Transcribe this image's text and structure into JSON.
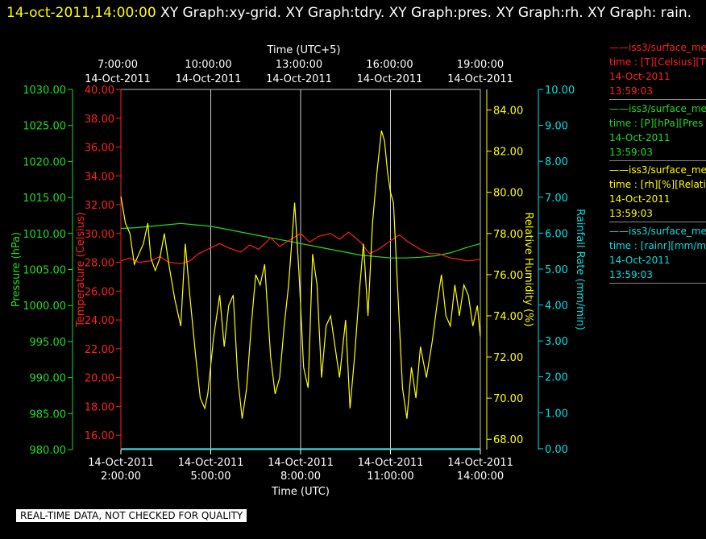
{
  "header": {
    "timestamp": "14-oct-2011,14:00:00",
    "title": "XY Graph:xy-grid.  XY Graph:tdry.  XY Graph:pres.  XY Graph:rh.  XY Graph: rain."
  },
  "footer": {
    "notice": "REAL-TIME DATA, NOT CHECKED FOR QUALITY"
  },
  "colors": {
    "temperature": "#ff2020",
    "pressure": "#20dd20",
    "humidity": "#ffff00",
    "rain": "#00e0e0",
    "grid": "#cccccc"
  },
  "legend": [
    {
      "line1": "iss3/surface_me",
      "line2": "time : [T][Celsius][T",
      "line3": "14-Oct-2011",
      "line4": "13:59:03",
      "color": "#ff2020"
    },
    {
      "line1": "iss3/surface_me",
      "line2": "time : [P][hPa][Pres",
      "line3": "14-Oct-2011",
      "line4": "13:59:03",
      "color": "#20dd20"
    },
    {
      "line1": "iss3/surface_me",
      "line2": "time : [rh][%][Relati",
      "line3": "14-Oct-2011",
      "line4": "13:59:03",
      "color": "#ffff00"
    },
    {
      "line1": "iss3/surface_me",
      "line2": "time : [rainr][mm/mi",
      "line3": "14-Oct-2011",
      "line4": "13:59:03",
      "color": "#00e0e0"
    }
  ],
  "chart_data": {
    "type": "line",
    "x_bottom": {
      "label": "Time (UTC)",
      "ticks": [
        {
          "date": "14-Oct-2011",
          "time": "2:00:00"
        },
        {
          "date": "14-Oct-2011",
          "time": "5:00:00"
        },
        {
          "date": "14-Oct-2011",
          "time": "8:00:00"
        },
        {
          "date": "14-Oct-2011",
          "time": "11:00:00"
        },
        {
          "date": "14-Oct-2011",
          "time": "14:00:00"
        }
      ]
    },
    "x_top": {
      "label": "Time (UTC+5)",
      "ticks": [
        {
          "date": "14-Oct-2011",
          "time": "7:00:00"
        },
        {
          "date": "14-Oct-2011",
          "time": "10:00:00"
        },
        {
          "date": "14-Oct-2011",
          "time": "13:00:00"
        },
        {
          "date": "14-Oct-2011",
          "time": "16:00:00"
        },
        {
          "date": "14-Oct-2011",
          "time": "19:00:00"
        }
      ]
    },
    "xlim_hours_utc": [
      2,
      14
    ],
    "grid": "vertical lines at bottom time ticks",
    "axes": {
      "pressure": {
        "label": "Pressure (hPa)",
        "lim": [
          980,
          1030
        ],
        "ticks": [
          "1030.00",
          "1025.00",
          "1020.00",
          "1015.00",
          "1010.00",
          "1005.00",
          "1000.00",
          "995.00",
          "990.00",
          "985.00",
          "980.00"
        ]
      },
      "temperature": {
        "label": "Temperature (Celsius)",
        "lim": [
          15,
          40
        ],
        "ticks": [
          "40.00",
          "38.00",
          "36.00",
          "34.00",
          "32.00",
          "30.00",
          "28.00",
          "26.00",
          "24.00",
          "22.00",
          "20.00",
          "18.00",
          "16.00"
        ]
      },
      "humidity": {
        "label": "Relative Humidity (%)",
        "lim": [
          67.5,
          85.0
        ],
        "ticks": [
          "84.00",
          "82.00",
          "80.00",
          "78.00",
          "76.00",
          "74.00",
          "72.00",
          "70.00",
          "68.00"
        ]
      },
      "rain": {
        "label": "Rainfall Rate (mm/min)",
        "lim": [
          -0.025,
          10.0
        ],
        "ticks": [
          "10.00",
          "9.00",
          "8.00",
          "7.00",
          "6.00",
          "5.00",
          "4.00",
          "3.00",
          "2.00",
          "1.00",
          "0.00"
        ]
      }
    },
    "series": [
      {
        "name": "iss3/surface_me",
        "axis": "pressure",
        "color": "#20dd20",
        "x": [
          2.0,
          2.5,
          3.0,
          3.5,
          4.0,
          4.5,
          5.0,
          5.5,
          6.0,
          6.5,
          7.0,
          7.5,
          8.0,
          8.5,
          9.0,
          9.5,
          10.0,
          10.5,
          11.0,
          11.5,
          12.0,
          12.5,
          13.0,
          13.5,
          14.0
        ],
        "values": [
          1010.7,
          1010.8,
          1011.0,
          1011.2,
          1011.4,
          1011.2,
          1011.0,
          1010.6,
          1010.2,
          1009.8,
          1009.4,
          1009.0,
          1008.6,
          1008.2,
          1007.8,
          1007.4,
          1007.0,
          1006.8,
          1006.6,
          1006.6,
          1006.7,
          1006.9,
          1007.3,
          1008.0,
          1008.6
        ]
      },
      {
        "name": "iss3/surface_me",
        "axis": "temperature",
        "color": "#ff2020",
        "x": [
          2.0,
          2.3,
          2.6,
          3.0,
          3.3,
          3.6,
          4.0,
          4.3,
          4.6,
          5.0,
          5.3,
          5.6,
          6.0,
          6.3,
          6.6,
          7.0,
          7.3,
          7.6,
          8.0,
          8.3,
          8.6,
          9.0,
          9.3,
          9.6,
          10.0,
          10.3,
          10.6,
          11.0,
          11.3,
          11.6,
          12.0,
          12.3,
          12.6,
          13.0,
          13.3,
          13.6,
          14.0
        ],
        "values": [
          28.1,
          28.3,
          28.0,
          28.1,
          28.4,
          28.0,
          27.9,
          28.1,
          28.6,
          29.0,
          29.3,
          29.0,
          28.7,
          29.2,
          28.9,
          29.7,
          29.1,
          29.5,
          30.0,
          29.4,
          29.8,
          30.0,
          29.6,
          30.1,
          29.4,
          28.6,
          28.9,
          29.5,
          29.9,
          29.4,
          28.9,
          28.6,
          28.6,
          28.3,
          28.2,
          28.1,
          28.2
        ]
      },
      {
        "name": "iss3/surface_me",
        "axis": "humidity",
        "color": "#ffff00",
        "x": [
          2.0,
          2.15,
          2.3,
          2.45,
          2.6,
          2.75,
          2.9,
          3.0,
          3.15,
          3.3,
          3.45,
          3.6,
          3.8,
          4.0,
          4.15,
          4.3,
          4.5,
          4.65,
          4.8,
          4.9,
          5.1,
          5.3,
          5.45,
          5.6,
          5.75,
          5.9,
          6.05,
          6.2,
          6.35,
          6.5,
          6.65,
          6.8,
          7.0,
          7.15,
          7.3,
          7.45,
          7.6,
          7.8,
          7.95,
          8.1,
          8.25,
          8.4,
          8.55,
          8.7,
          8.85,
          9.0,
          9.15,
          9.3,
          9.5,
          9.65,
          9.8,
          9.95,
          10.1,
          10.25,
          10.4,
          10.55,
          10.7,
          10.8,
          10.9,
          11.0,
          11.1,
          11.25,
          11.4,
          11.55,
          11.7,
          11.85,
          12.0,
          12.2,
          12.4,
          12.55,
          12.7,
          12.85,
          13.0,
          13.15,
          13.3,
          13.45,
          13.6,
          13.75,
          13.9,
          14.0
        ],
        "values": [
          79.8,
          78.5,
          78.0,
          76.5,
          77.0,
          77.5,
          78.5,
          76.8,
          76.2,
          76.8,
          78.0,
          76.5,
          74.8,
          73.5,
          77.5,
          75.0,
          72.0,
          70.0,
          69.5,
          70.2,
          73.0,
          75.0,
          72.5,
          74.5,
          75.0,
          71.0,
          69.0,
          70.5,
          73.5,
          76.0,
          75.5,
          76.5,
          72.0,
          70.2,
          71.0,
          73.5,
          75.5,
          79.5,
          76.0,
          71.5,
          70.5,
          77.0,
          75.5,
          71.0,
          73.5,
          74.0,
          72.5,
          71.0,
          73.8,
          69.5,
          72.0,
          75.0,
          77.5,
          74.0,
          78.5,
          81.0,
          83.0,
          82.5,
          81.0,
          80.0,
          79.5,
          75.0,
          70.5,
          69.0,
          71.5,
          70.0,
          72.5,
          71.0,
          72.8,
          74.5,
          76.0,
          74.0,
          73.5,
          75.5,
          74.0,
          75.5,
          75.0,
          73.5,
          74.5,
          73.0
        ]
      },
      {
        "name": "iss3/surface_me",
        "axis": "rain",
        "color": "#00e0e0",
        "x": [
          2.0,
          14.0
        ],
        "values": [
          0.0,
          0.0
        ]
      }
    ]
  }
}
